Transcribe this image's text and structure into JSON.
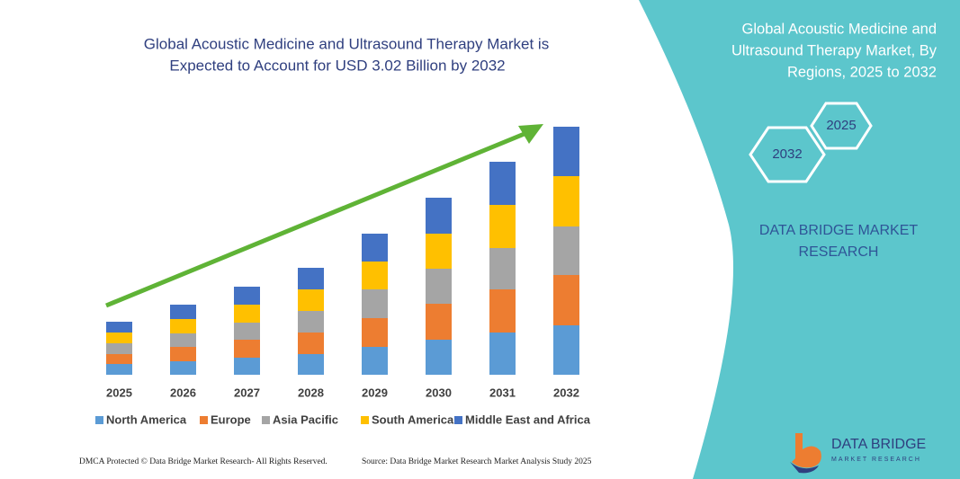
{
  "chart_data": {
    "type": "stacked_bar",
    "title": [
      "Global Acoustic Medicine and Ultrasound Therapy Market is",
      "Expected to Account for USD 3.02 Billion by 2032"
    ],
    "categories": [
      "2025",
      "2026",
      "2027",
      "2028",
      "2029",
      "2030",
      "2031",
      "2032"
    ],
    "series": [
      {
        "name": "North America",
        "color": "#5b9bd5",
        "values": [
          12,
          15,
          19,
          23,
          31,
          39,
          47,
          55
        ]
      },
      {
        "name": "Europe",
        "color": "#ed7d31",
        "values": [
          11,
          16,
          20,
          24,
          32,
          40,
          48,
          56
        ]
      },
      {
        "name": "Asia Pacific",
        "color": "#a5a5a5",
        "values": [
          12,
          15,
          19,
          24,
          32,
          39,
          46,
          54
        ]
      },
      {
        "name": "South America",
        "color": "#ffc000",
        "values": [
          12,
          16,
          20,
          24,
          31,
          39,
          48,
          56
        ]
      },
      {
        "name": "Middle East and Africa",
        "color": "#4472c4",
        "values": [
          12,
          16,
          20,
          24,
          31,
          40,
          48,
          55
        ]
      }
    ],
    "ylim": [
      0,
      300
    ],
    "legend": "bottom"
  },
  "panel": {
    "title": [
      "Global Acoustic Medicine and",
      "Ultrasound Therapy Market, By",
      "Regions, 2025 to 2032"
    ],
    "hex_small": "2025",
    "hex_large": "2032",
    "brand": [
      "DATA BRIDGE MARKET",
      "RESEARCH"
    ]
  },
  "footer": {
    "left": "DMCA Protected © Data Bridge Market Research- All Rights Reserved.",
    "right": "Source: Data Bridge Market Research Market Analysis Study 2025"
  },
  "logo": {
    "name": "DATA BRIDGE",
    "tagline": "MARKET RESEARCH"
  }
}
